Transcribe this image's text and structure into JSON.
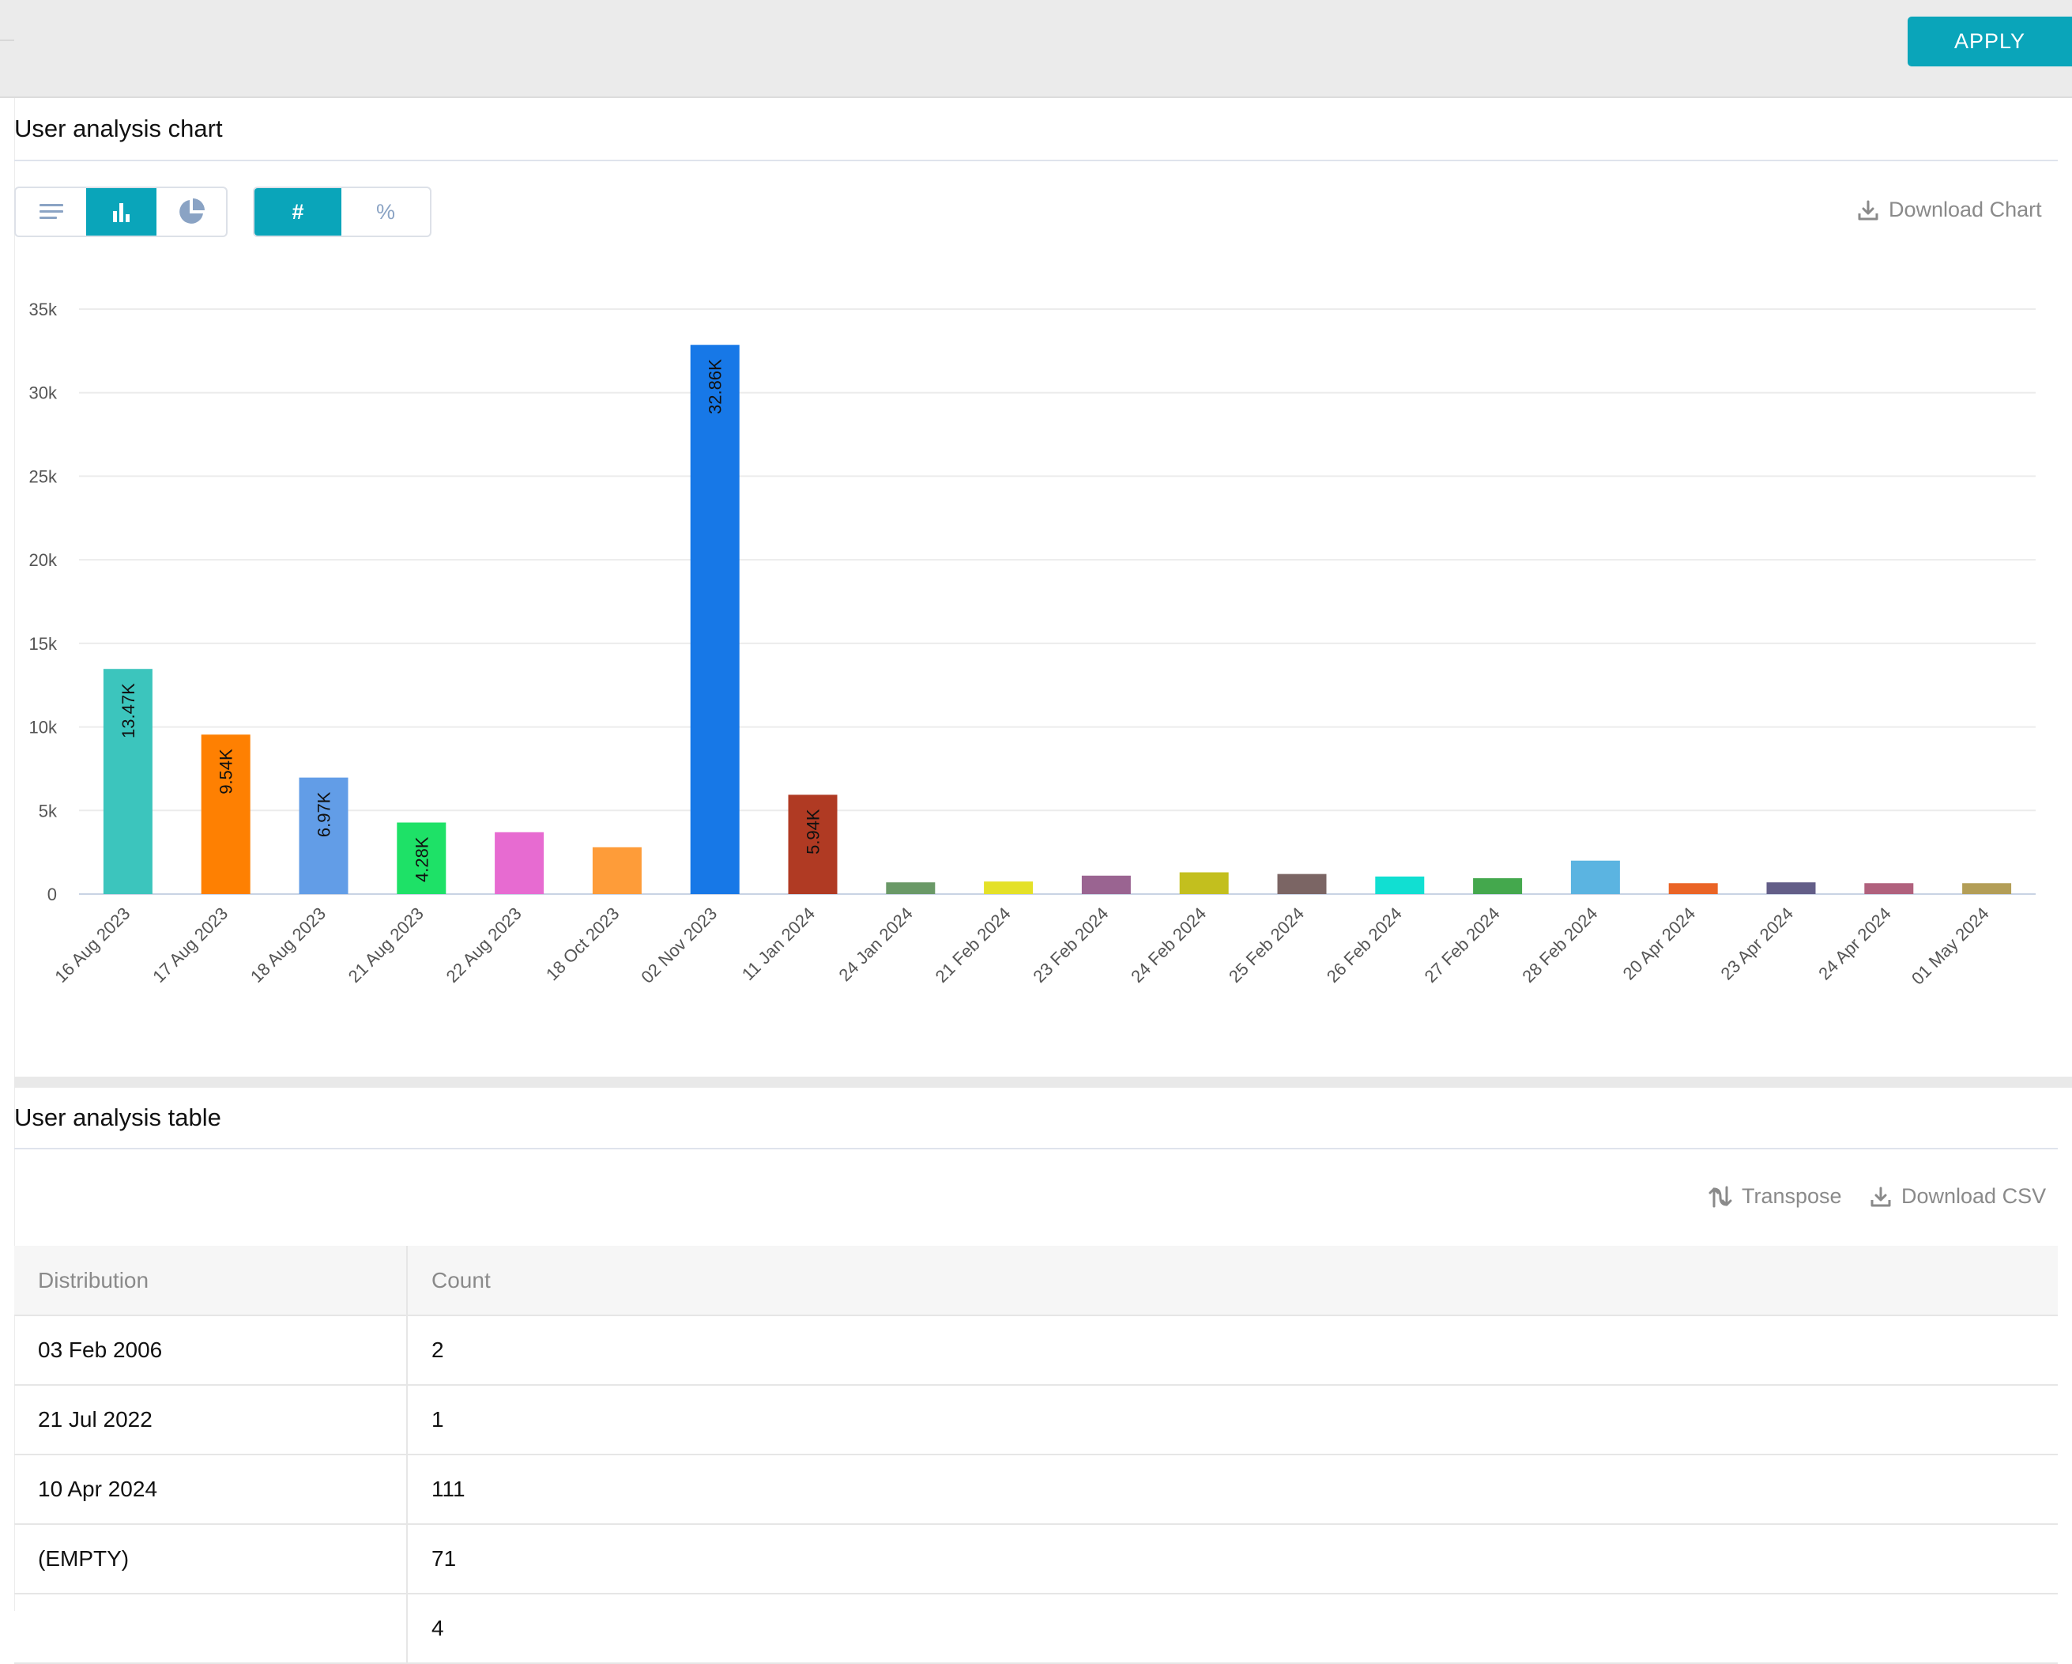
{
  "topbar": {
    "apply_label": "APPLY"
  },
  "chart_section": {
    "title": "User analysis chart",
    "download_label": "Download Chart"
  },
  "table_section": {
    "title": "User analysis table",
    "transpose_label": "Transpose",
    "download_label": "Download CSV",
    "columns": [
      "Distribution",
      "Count"
    ],
    "rows": [
      [
        "03 Feb 2006",
        "2"
      ],
      [
        "21 Jul 2022",
        "1"
      ],
      [
        "10 Apr 2024",
        "111"
      ],
      [
        "(EMPTY)",
        "71"
      ],
      [
        "",
        "4"
      ]
    ]
  },
  "view_toggle": {
    "active": "bar",
    "options": [
      "list-icon",
      "bar-chart-icon",
      "pie-chart-icon"
    ]
  },
  "unit_toggle": {
    "options": [
      "#",
      "%"
    ],
    "active": "#"
  },
  "colors": {
    "accent": "#0aa5ba"
  },
  "chart_data": {
    "type": "bar",
    "title": "",
    "xlabel": "",
    "ylabel": "",
    "ylim": [
      0,
      35000
    ],
    "yticks": [
      "0",
      "5k",
      "10k",
      "15k",
      "20k",
      "25k",
      "30k",
      "35k"
    ],
    "ytick_values": [
      0,
      5000,
      10000,
      15000,
      20000,
      25000,
      30000,
      35000
    ],
    "grid": true,
    "categories": [
      "16 Aug 2023",
      "17 Aug 2023",
      "18 Aug 2023",
      "21 Aug 2023",
      "22 Aug 2023",
      "18 Oct 2023",
      "02 Nov 2023",
      "11 Jan 2024",
      "24 Jan 2024",
      "21 Feb 2024",
      "23 Feb 2024",
      "24 Feb 2024",
      "25 Feb 2024",
      "26 Feb 2024",
      "27 Feb 2024",
      "28 Feb 2024",
      "20 Apr 2024",
      "23 Apr 2024",
      "24 Apr 2024",
      "01 May 2024"
    ],
    "values": [
      13470,
      9540,
      6970,
      4280,
      3700,
      2800,
      32860,
      5940,
      700,
      750,
      1100,
      1300,
      1200,
      1050,
      950,
      2000,
      650,
      700,
      650,
      650
    ],
    "data_labels": [
      "13.47K",
      "9.54K",
      "6.97K",
      "4.28K",
      "",
      "",
      "32.86K",
      "5.94K",
      "",
      "",
      "",
      "",
      "",
      "",
      "",
      "",
      "",
      "",
      "",
      ""
    ],
    "colors": [
      "#3cc5bd",
      "#fe8002",
      "#629de7",
      "#1ee167",
      "#e76bd1",
      "#fe9c39",
      "#1778e7",
      "#b03a23",
      "#6a9967",
      "#e4e128",
      "#9a6491",
      "#c3bf1e",
      "#7b6564",
      "#11dfd2",
      "#44a84d",
      "#5bb4e1",
      "#ea6426",
      "#635e88",
      "#b0617d",
      "#b39e57"
    ]
  }
}
